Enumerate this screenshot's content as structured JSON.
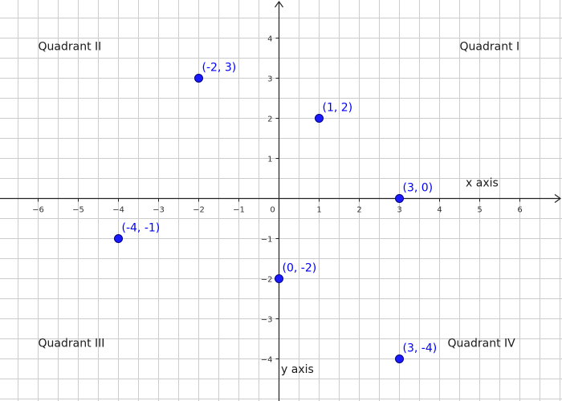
{
  "chart_data": {
    "type": "scatter",
    "xlim": [
      -6.95,
      7.05
    ],
    "ylim": [
      -5.05,
      4.95
    ],
    "grid": true,
    "x_ticks": [
      -6,
      -5,
      -4,
      -3,
      -2,
      -1,
      0,
      1,
      2,
      3,
      4,
      5,
      6
    ],
    "x_tick_labels": [
      "−6",
      "−5",
      "−4",
      "−3",
      "−2",
      "−1",
      "0",
      "1",
      "2",
      "3",
      "4",
      "5",
      "6"
    ],
    "y_ticks": [
      4,
      3,
      2,
      1,
      -1,
      -2,
      -3,
      -4
    ],
    "y_tick_labels": [
      "4",
      "3",
      "2",
      "1",
      "−1",
      "−2",
      "−3",
      "−4"
    ],
    "points": [
      {
        "x": -2,
        "y": 3,
        "label": "(-2, 3)"
      },
      {
        "x": 1,
        "y": 2,
        "label": "(1, 2)"
      },
      {
        "x": 3,
        "y": 0,
        "label": "(3, 0)"
      },
      {
        "x": -4,
        "y": -1,
        "label": "(-4, -1)"
      },
      {
        "x": 0,
        "y": -2,
        "label": "(0, -2)"
      },
      {
        "x": 3,
        "y": -4,
        "label": "(3, -4)"
      }
    ],
    "quadrant_labels": [
      {
        "text": "Quadrant II",
        "x": -6,
        "y": 3.7
      },
      {
        "text": "Quadrant I",
        "x": 4.5,
        "y": 3.7
      },
      {
        "text": "Quadrant III",
        "x": -6,
        "y": -3.7
      },
      {
        "text": "Quadrant IV",
        "x": 4.2,
        "y": -3.7
      }
    ],
    "axis_labels": [
      {
        "text": "x axis",
        "x": 4.65,
        "y": 0.3
      },
      {
        "text": "y axis",
        "x": 0.05,
        "y": -4.35
      }
    ],
    "colors": {
      "point_fill": "#1a1aff",
      "point_stroke": "#000080",
      "point_label": "#0000ff",
      "grid": "#cccccc",
      "axis": "#222222"
    }
  }
}
